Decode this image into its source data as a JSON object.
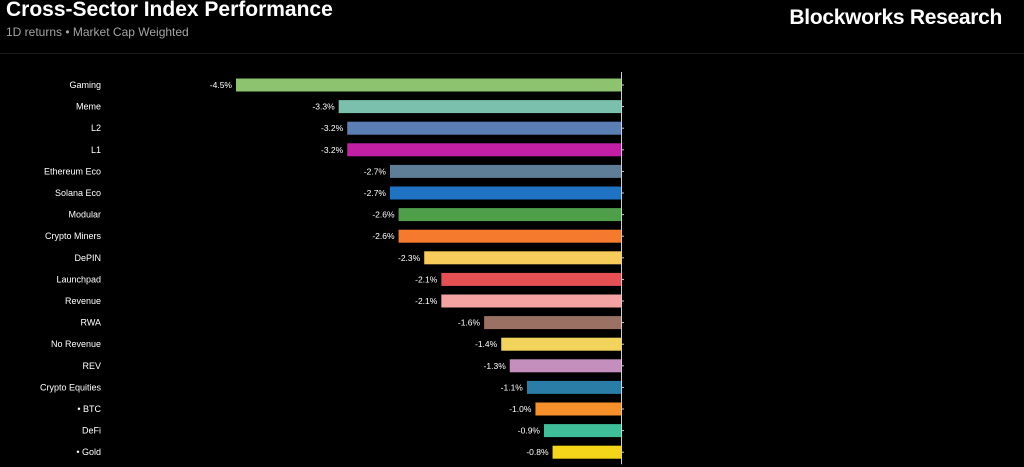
{
  "header": {
    "title": "Cross-Sector Index Performance",
    "subtitle": "1D returns • Market Cap Weighted",
    "brand": "Blockworks Research"
  },
  "chart_data": {
    "type": "bar",
    "orientation": "horizontal",
    "categories": [
      "Gaming",
      "Meme",
      "L2",
      "L1",
      "Ethereum Eco",
      "Solana Eco",
      "Modular",
      "Crypto Miners",
      "DePIN",
      "Launchpad",
      "Revenue",
      "RWA",
      "No Revenue",
      "REV",
      "Crypto Equities",
      "• BTC",
      "DeFi",
      "• Gold"
    ],
    "values": [
      -4.5,
      -3.3,
      -3.2,
      -3.2,
      -2.7,
      -2.7,
      -2.6,
      -2.6,
      -2.3,
      -2.1,
      -2.1,
      -1.6,
      -1.4,
      -1.3,
      -1.1,
      -1.0,
      -0.9,
      -0.8
    ],
    "value_labels": [
      "-4.5%",
      "-3.3%",
      "-3.2%",
      "-3.2%",
      "-2.7%",
      "-2.7%",
      "-2.6%",
      "-2.6%",
      "-2.3%",
      "-2.1%",
      "-2.1%",
      "-1.6%",
      "-1.4%",
      "-1.3%",
      "-1.1%",
      "-1.0%",
      "-0.9%",
      "-0.8%"
    ],
    "colors": [
      "#8dc26f",
      "#7bbfad",
      "#5b7fb5",
      "#c21fa5",
      "#5e7d96",
      "#1f73c2",
      "#4f9f4a",
      "#f57a2e",
      "#f7cc5a",
      "#e45054",
      "#f5a2a2",
      "#9a7162",
      "#f2d35c",
      "#c48fbd",
      "#2a7da6",
      "#f5902a",
      "#3fbf99",
      "#f5d51a"
    ],
    "xlim": [
      -4.5,
      0
    ],
    "grid": false,
    "legend": "none"
  }
}
